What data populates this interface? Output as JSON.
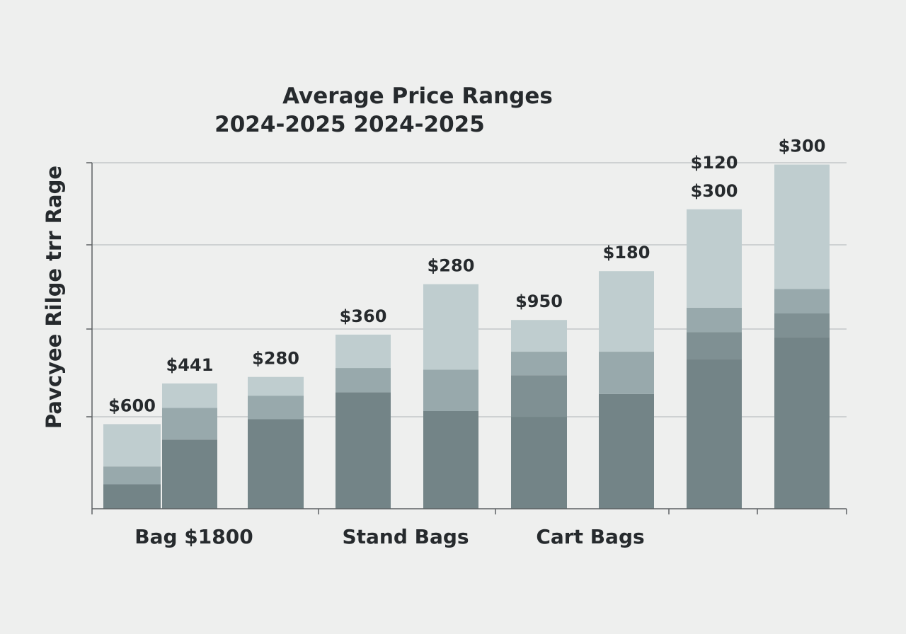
{
  "chart_data": {
    "type": "bar",
    "title": "Average Price Ranges",
    "subtitle": "2024-2025 2024-2025",
    "ylabel": "Pavcyee Rilge trr Rage",
    "category_labels": [
      "Bag $1800",
      "Stand Bags",
      "Cart Bags"
    ],
    "stacked": true,
    "ylim": [
      0,
      425
    ],
    "grid": true,
    "bars": [
      {
        "segments": [
          30,
          22,
          52
        ],
        "label": "$600"
      },
      {
        "segments": [
          85,
          39,
          30
        ],
        "label": "$441"
      },
      {
        "segments": [
          110,
          29,
          23
        ],
        "label": "$280"
      },
      {
        "segments": [
          143,
          30,
          41
        ],
        "label": "$360"
      },
      {
        "segments": [
          120,
          51,
          105
        ],
        "label": "$280"
      },
      {
        "segments": [
          113,
          51,
          29,
          39
        ],
        "label": "$950"
      },
      {
        "segments": [
          141,
          52,
          99
        ],
        "label": "$180"
      },
      {
        "segments": [
          184,
          33,
          30,
          121
        ],
        "labels": [
          "$300",
          "$120"
        ]
      },
      {
        "segments": [
          211,
          29,
          30,
          153
        ],
        "label": "$300"
      }
    ],
    "colors": {
      "dark": "#738487",
      "mid_dark": "#7f9093",
      "mid": "#98a9ac",
      "light": "#bfcdcf",
      "grid": "#c4c7c8",
      "axis": "#5d6163"
    }
  }
}
